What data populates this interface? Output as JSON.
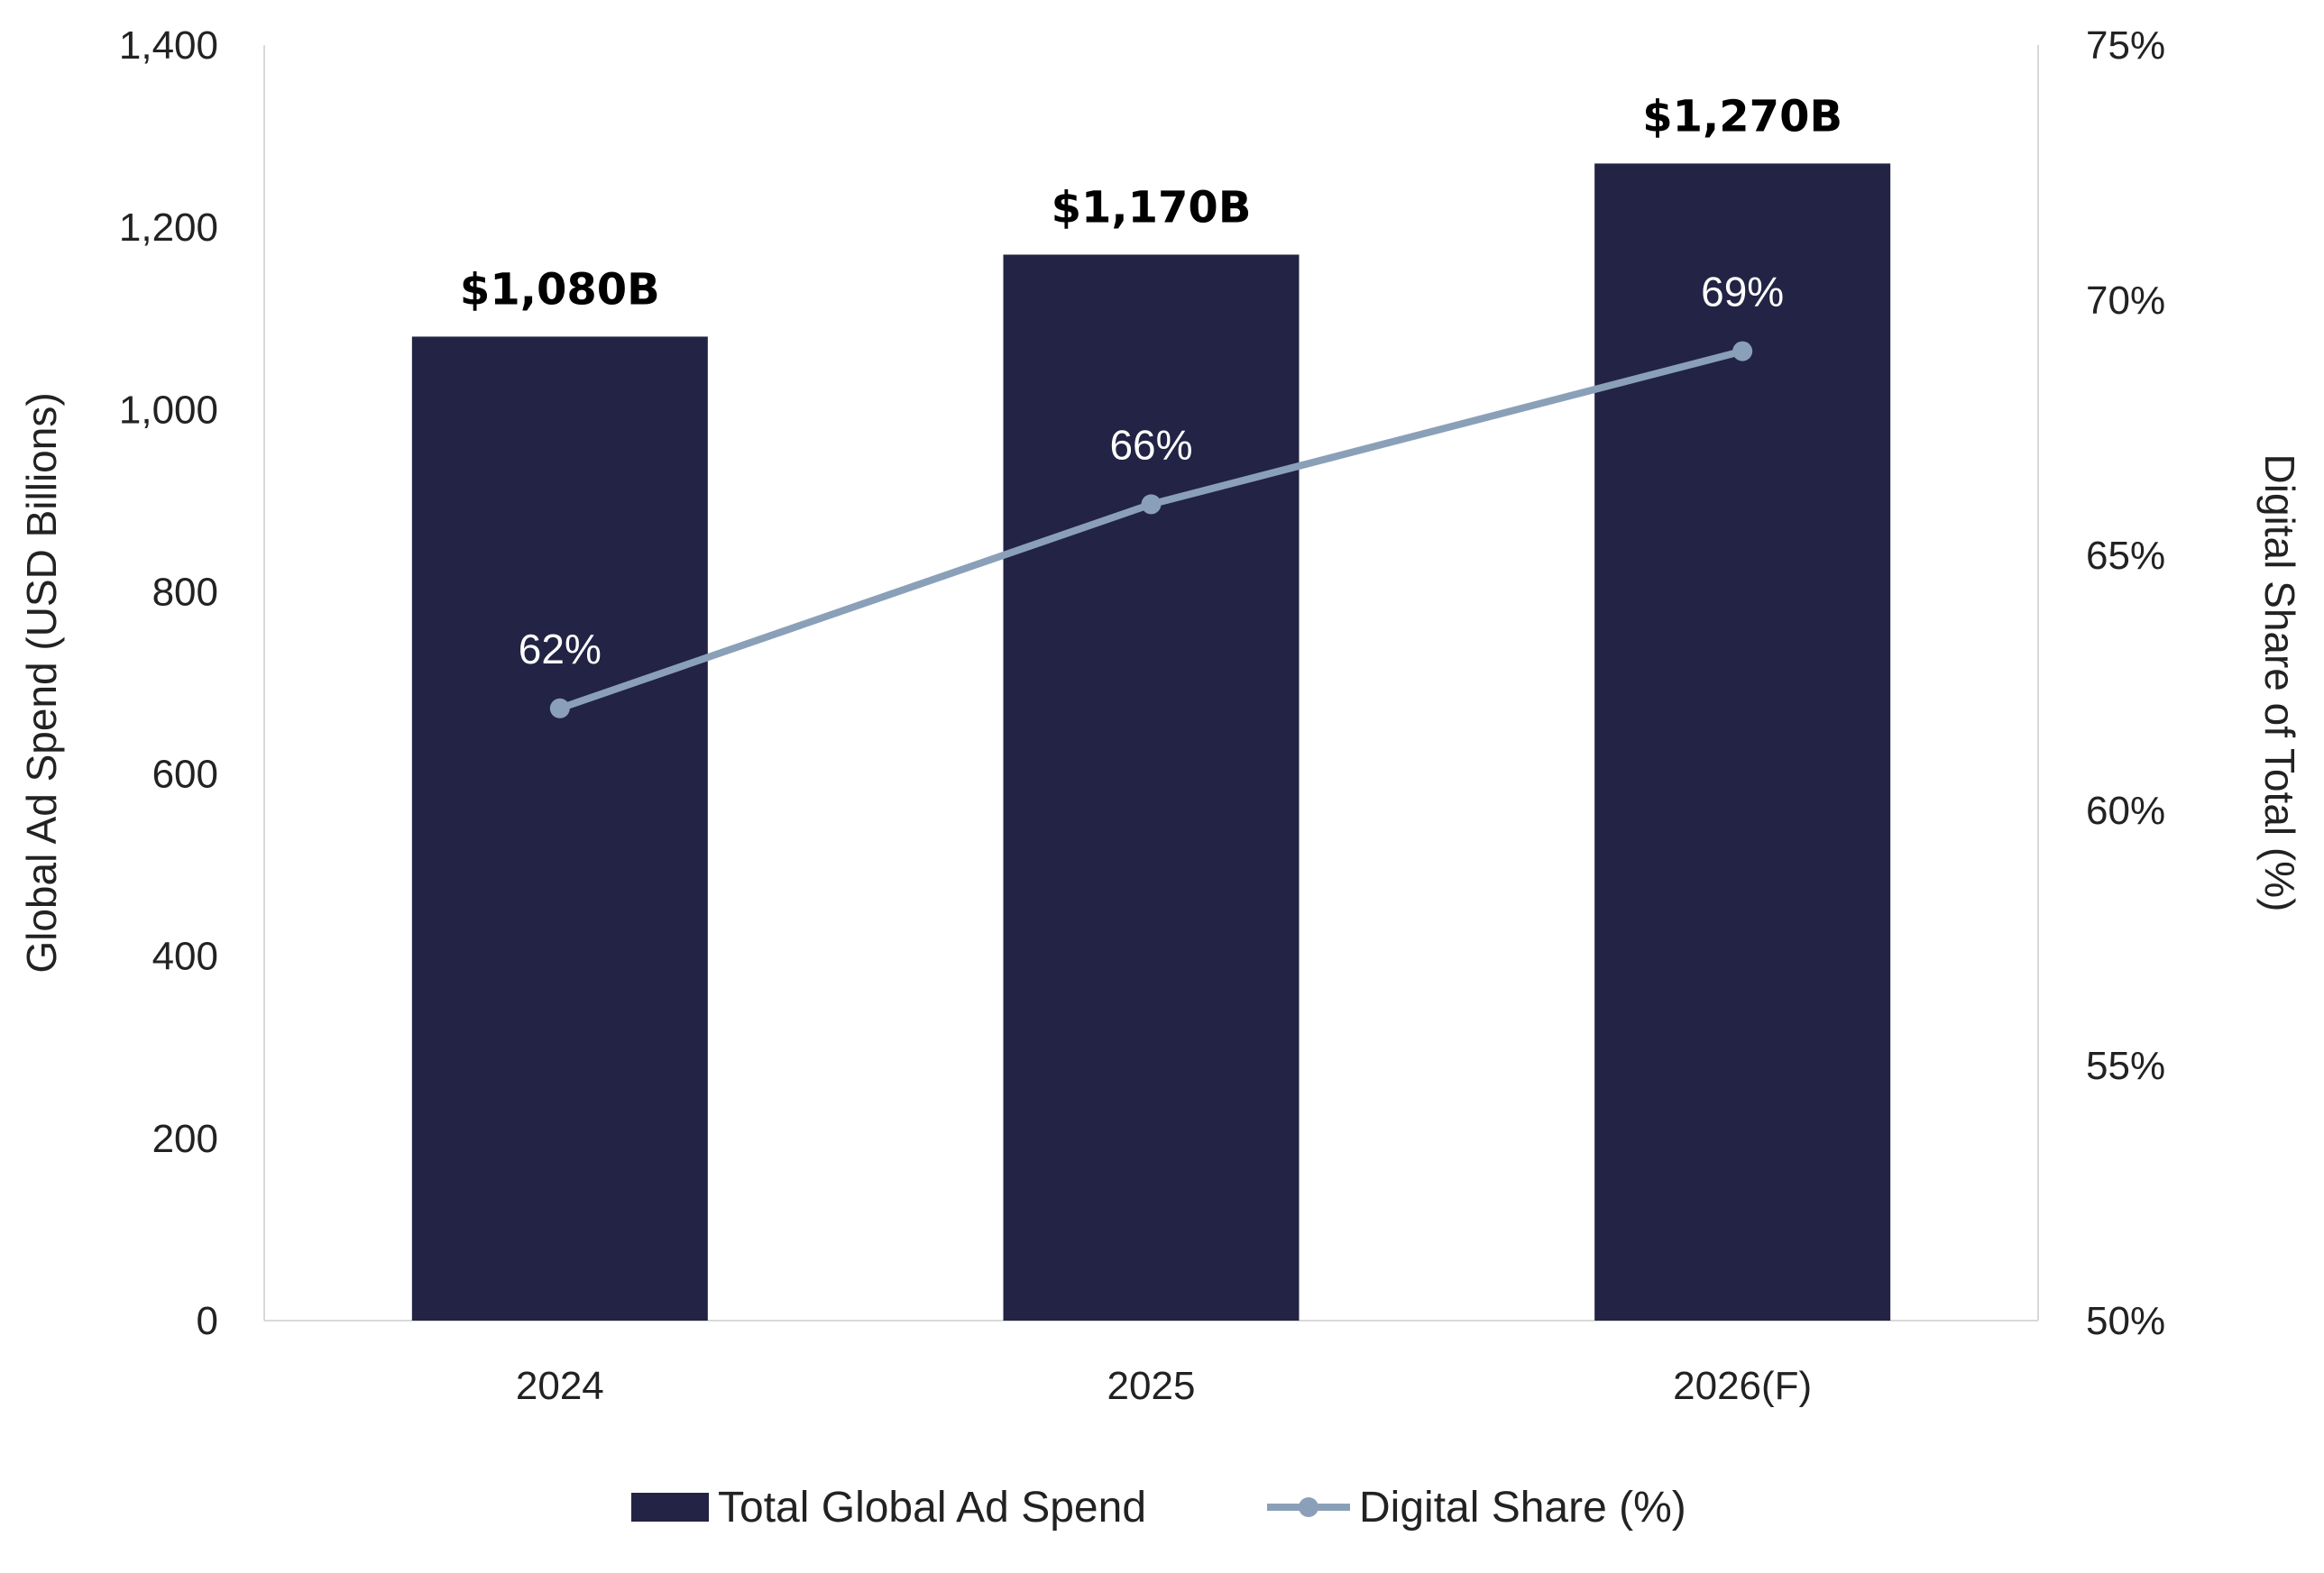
{
  "chart_data": {
    "type": "bar",
    "categories": [
      "2024",
      "2025",
      "2026(F)"
    ],
    "series": [
      {
        "name": "Total Global Ad Spend",
        "type": "bar",
        "axis": "left",
        "values": [
          1080,
          1170,
          1270
        ],
        "labels": [
          "$1,080B",
          "$1,170B",
          "$1,270B"
        ],
        "color": "#232345"
      },
      {
        "name": "Digital Share (%)",
        "type": "line",
        "axis": "right",
        "values": [
          62,
          66,
          69
        ],
        "labels": [
          "62%",
          "66%",
          "69%"
        ],
        "color": "#8aa0b8"
      }
    ],
    "ylabel": "Global Ad Spend (USD Billions)",
    "y2label": "Digital Share of Total (%)",
    "ylim": [
      0,
      1400
    ],
    "y2lim": [
      50,
      75
    ],
    "yticks": [
      "0",
      "200",
      "400",
      "600",
      "800",
      "1,000",
      "1,200",
      "1,400"
    ],
    "y2ticks": [
      "50%",
      "55%",
      "60%",
      "65%",
      "70%",
      "75%"
    ],
    "grid": false,
    "legend_position": "bottom"
  }
}
